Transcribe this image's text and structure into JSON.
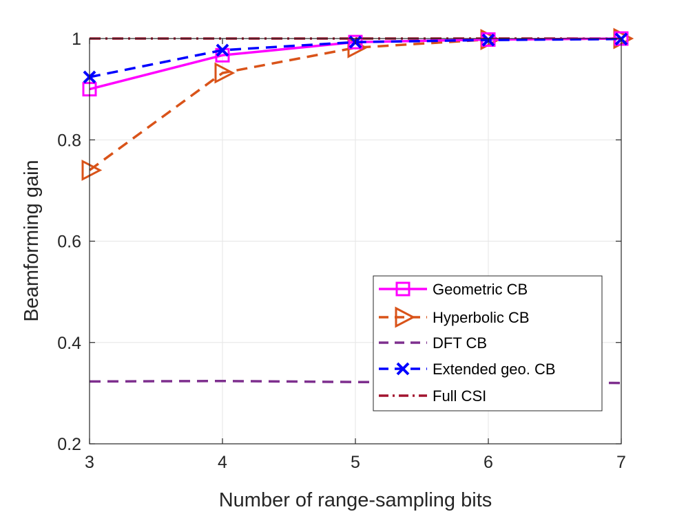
{
  "chart_data": {
    "type": "line",
    "title": "",
    "xlabel": "Number of range-sampling bits",
    "ylabel": "Beamforming gain",
    "x": [
      3,
      4,
      5,
      6,
      7
    ],
    "xlim": [
      3,
      7
    ],
    "ylim": [
      0.2,
      1.0
    ],
    "xticks": [
      "3",
      "4",
      "5",
      "6",
      "7"
    ],
    "yticks": [
      "0.2",
      "0.4",
      "0.6",
      "0.8",
      "1"
    ],
    "grid": true,
    "legend_position": "lower-right",
    "series": [
      {
        "name": "Geometric CB",
        "values": [
          0.9,
          0.967,
          0.993,
          0.998,
          1.0
        ],
        "color": "#ff00ff",
        "dash": "solid",
        "marker": "square"
      },
      {
        "name": "Hyperbolic CB",
        "values": [
          0.74,
          0.932,
          0.982,
          0.998,
          1.0
        ],
        "color": "#d95319",
        "dash": "dashed",
        "marker": "triangle-right"
      },
      {
        "name": "DFT CB",
        "values": [
          0.323,
          0.324,
          0.322,
          0.321,
          0.32
        ],
        "color": "#7e2f8e",
        "dash": "dashed",
        "marker": "none"
      },
      {
        "name": "Extended geo. CB",
        "values": [
          0.924,
          0.977,
          0.993,
          0.997,
          0.999
        ],
        "color": "#0000ff",
        "dash": "dashed",
        "marker": "x"
      },
      {
        "name": "Full CSI",
        "values": [
          1.0,
          1.0,
          1.0,
          1.0,
          1.0
        ],
        "color": "#a2142f",
        "dash": "dashdot",
        "marker": "none"
      }
    ]
  }
}
